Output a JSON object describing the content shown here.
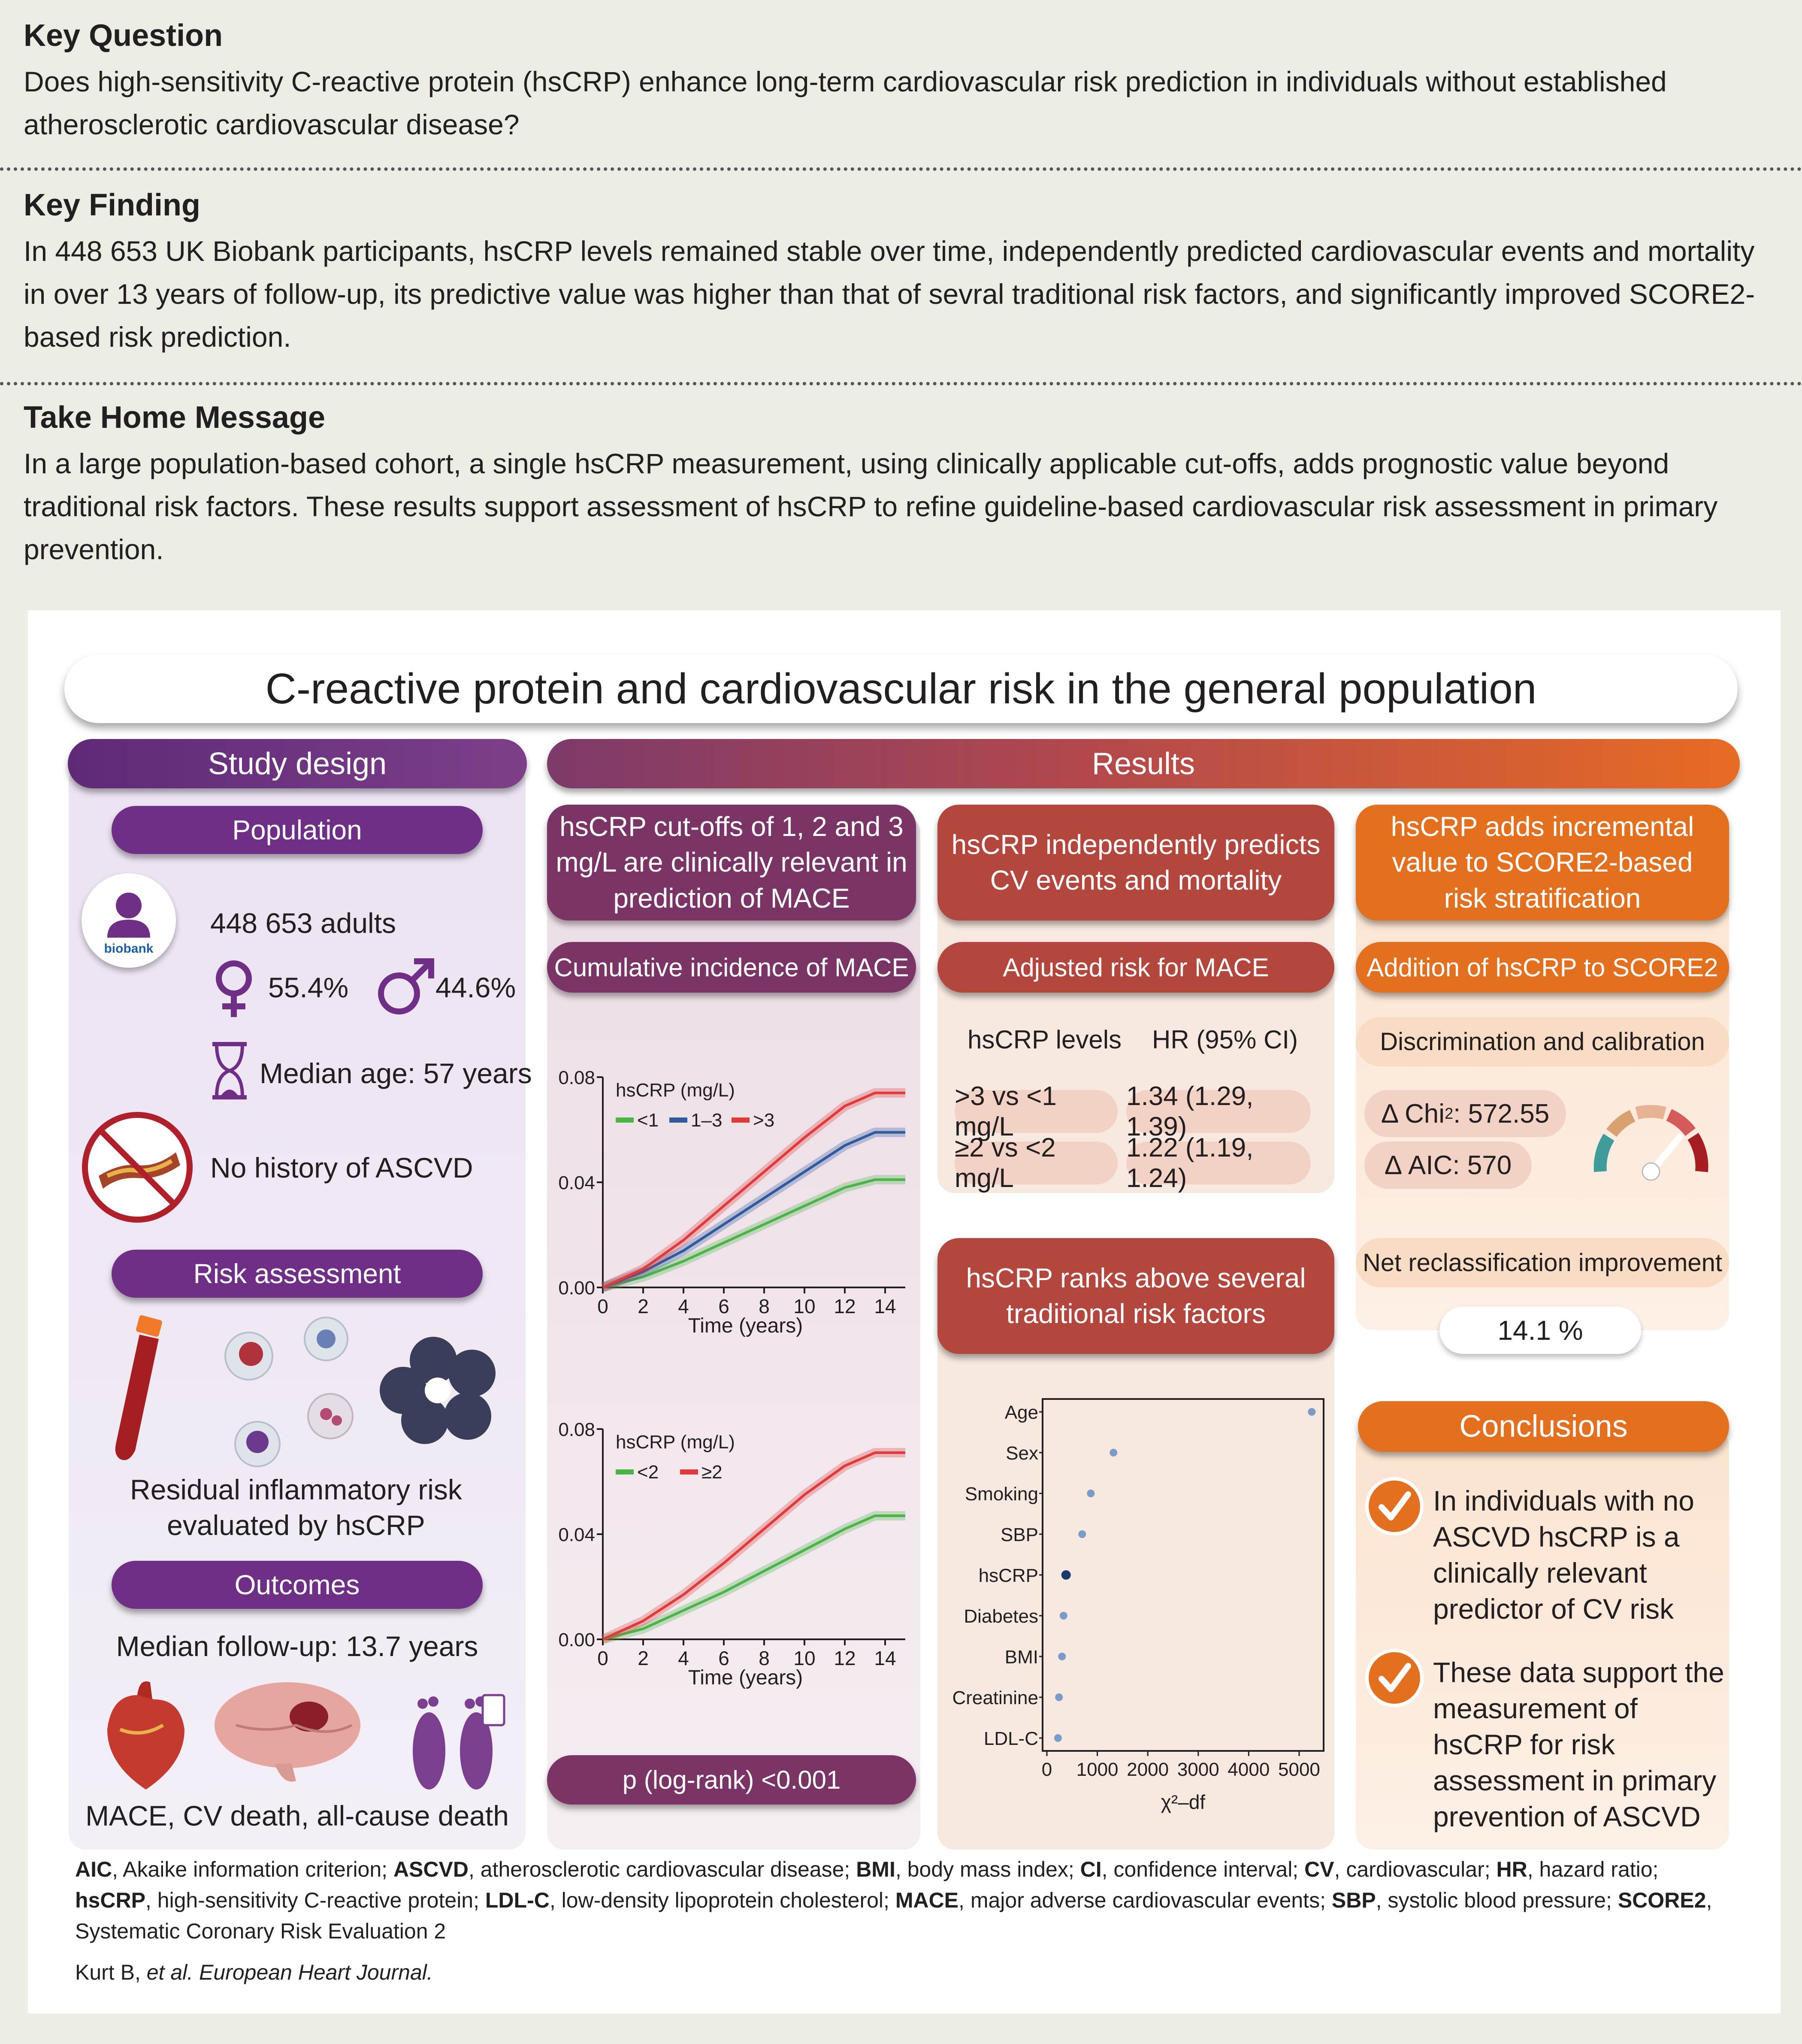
{
  "key_question": {
    "title": "Key Question",
    "text": "Does high-sensitivity C-reactive protein (hsCRP) enhance long-term cardiovascular risk prediction in individuals without established atherosclerotic cardiovascular disease?"
  },
  "key_finding": {
    "title": "Key Finding",
    "text": "In 448 653 UK Biobank participants, hsCRP levels remained stable over time, independently predicted cardiovascular events and mortality in over 13 years of follow-up, its predictive value was higher than that of sevral traditional risk factors, and significantly improved SCORE2-based risk prediction."
  },
  "take_home": {
    "title": "Take Home Message",
    "text": "In a large population-based cohort, a single hsCRP measurement, using clinically applicable cut-offs, adds prognostic value beyond traditional risk factors. These results support assessment of hsCRP to refine guideline-based cardiovascular risk assessment in primary prevention."
  },
  "main_title": "C-reactive protein and cardiovascular risk in the general population",
  "study_design": {
    "header": "Study design",
    "population_label": "Population",
    "biobank_logo_text": "biobank",
    "adults": "448 653 adults",
    "female_pct": "55.4%",
    "male_pct": "44.6%",
    "median_age": "Median age: 57 years",
    "no_history": "No history of ASCVD",
    "risk_label": "Risk assessment",
    "risk_text": "Residual inflammatory risk evaluated by hsCRP",
    "outcomes_label": "Outcomes",
    "followup": "Median follow-up: 13.7 years",
    "outcomes_text": "MACE, CV death, all-cause death"
  },
  "results": {
    "header": "Results",
    "col1": {
      "header": "hsCRP cut-offs of 1, 2 and 3 mg/L are clinically relevant in prediction of MACE",
      "sub": "Cumulative incidence of MACE",
      "pvalue": "p (log-rank) <0.001"
    },
    "col2": {
      "header": "hsCRP independently predicts CV events and mortality",
      "sub": "Adjusted risk for MACE",
      "col_levels": "hsCRP levels",
      "col_hr": "HR (95% CI)",
      "rows": [
        {
          "level": ">3 vs <1 mg/L",
          "hr": "1.34 (1.29, 1.39)"
        },
        {
          "level": "≥2 vs <2 mg/L",
          "hr": "1.22 (1.19, 1.24)"
        }
      ],
      "ranks_header": "hsCRP ranks above several traditional risk factors"
    },
    "col3": {
      "header": "hsCRP adds incremental value to SCORE2-based risk stratification",
      "sub": "Addition of hsCRP to SCORE2",
      "disc_label": "Discrimination and calibration",
      "delta_chi_prefix": "Δ Chi",
      "delta_chi_sup": "2",
      "delta_chi_value": ": 572.55",
      "delta_aic": "Δ AIC: 570",
      "nri_label": "Net reclassification improvement",
      "nri_value": "14.1 %"
    },
    "conclusions": {
      "header": "Conclusions",
      "items": [
        "In individuals with no ASCVD hsCRP is a clinically relevant predictor of CV risk",
        "These data support the measurement of hsCRP for risk assessment in primary prevention of ASCVD"
      ]
    }
  },
  "chart_data": [
    {
      "type": "line",
      "title": "",
      "legend_title": "hsCRP (mg/L)",
      "xlabel": "Time (years)",
      "ylabel": "",
      "xlim": [
        0,
        15
      ],
      "ylim": [
        0,
        0.08
      ],
      "xticks": [
        0,
        2,
        4,
        6,
        8,
        10,
        12,
        14
      ],
      "yticks": [
        0.0,
        0.04,
        0.08
      ],
      "ytick_labels": [
        "0.00",
        "0.04",
        "0.08"
      ],
      "x": [
        0,
        2,
        4,
        6,
        8,
        10,
        12,
        13.5,
        15
      ],
      "series": [
        {
          "name": "<1",
          "color": "#4bb449",
          "values": [
            0,
            0.004,
            0.01,
            0.017,
            0.024,
            0.031,
            0.038,
            0.041,
            0.041
          ]
        },
        {
          "name": "1–3",
          "color": "#2f5a9e",
          "values": [
            0,
            0.006,
            0.014,
            0.024,
            0.034,
            0.044,
            0.054,
            0.059,
            0.059
          ]
        },
        {
          "name": ">3",
          "color": "#e03a3a",
          "values": [
            0,
            0.007,
            0.018,
            0.031,
            0.044,
            0.057,
            0.069,
            0.074,
            0.074
          ]
        }
      ]
    },
    {
      "type": "line",
      "title": "",
      "legend_title": "hsCRP (mg/L)",
      "xlabel": "Time (years)",
      "ylabel": "",
      "xlim": [
        0,
        15
      ],
      "ylim": [
        0,
        0.08
      ],
      "xticks": [
        0,
        2,
        4,
        6,
        8,
        10,
        12,
        14
      ],
      "yticks": [
        0.0,
        0.04,
        0.08
      ],
      "ytick_labels": [
        "0.00",
        "0.04",
        "0.08"
      ],
      "x": [
        0,
        2,
        4,
        6,
        8,
        10,
        12,
        13.5,
        15
      ],
      "series": [
        {
          "name": "<2",
          "color": "#4bb449",
          "values": [
            0,
            0.004,
            0.011,
            0.018,
            0.026,
            0.034,
            0.042,
            0.047,
            0.047
          ]
        },
        {
          "name": "≥2",
          "color": "#e03a3a",
          "values": [
            0,
            0.007,
            0.017,
            0.029,
            0.042,
            0.055,
            0.066,
            0.071,
            0.071
          ]
        }
      ]
    },
    {
      "type": "scatter",
      "title": "",
      "xlabel": "χ²–df",
      "ylabel": "",
      "xlim": [
        0,
        5400
      ],
      "xticks": [
        0,
        1000,
        2000,
        3000,
        4000,
        5000
      ],
      "categories": [
        "Age",
        "Sex",
        "Smoking",
        "SBP",
        "hsCRP",
        "Diabetes",
        "BMI",
        "Creatinine",
        "LDL-C"
      ],
      "values": [
        5250,
        1320,
        870,
        700,
        380,
        330,
        300,
        240,
        220
      ],
      "highlight": "hsCRP",
      "color": "#7b9cc8",
      "highlight_color": "#1b3a6b"
    }
  ],
  "footer": {
    "abbrev": [
      {
        "b": "AIC",
        "t": ", Akaike information criterion; "
      },
      {
        "b": "ASCVD",
        "t": ", atherosclerotic cardiovascular disease; "
      },
      {
        "b": "BMI",
        "t": ", body mass index; "
      },
      {
        "b": "CI",
        "t": ", confidence interval; "
      },
      {
        "b": "CV",
        "t": ", cardiovascular; "
      },
      {
        "b": "HR",
        "t": ", hazard ratio; "
      },
      {
        "b": "hsCRP",
        "t": ", high-sensitivity C-reactive protein; "
      },
      {
        "b": "LDL-C",
        "t": ", low-density lipoprotein cholesterol; "
      },
      {
        "b": "MACE",
        "t": ", major adverse cardiovascular events; "
      },
      {
        "b": "SBP",
        "t": ", systolic blood pressure; "
      },
      {
        "b": "SCORE2",
        "t": ", Systematic Coronary Risk Evaluation 2"
      }
    ],
    "citation_authors": "Kurt B, ",
    "citation_etal": "et al. European Heart Journal."
  },
  "colors": {
    "purple": "#6f2f86",
    "mauve": "#7a3466",
    "rust": "#b3473d",
    "orange": "#e3701e",
    "background": "#ebece4"
  }
}
